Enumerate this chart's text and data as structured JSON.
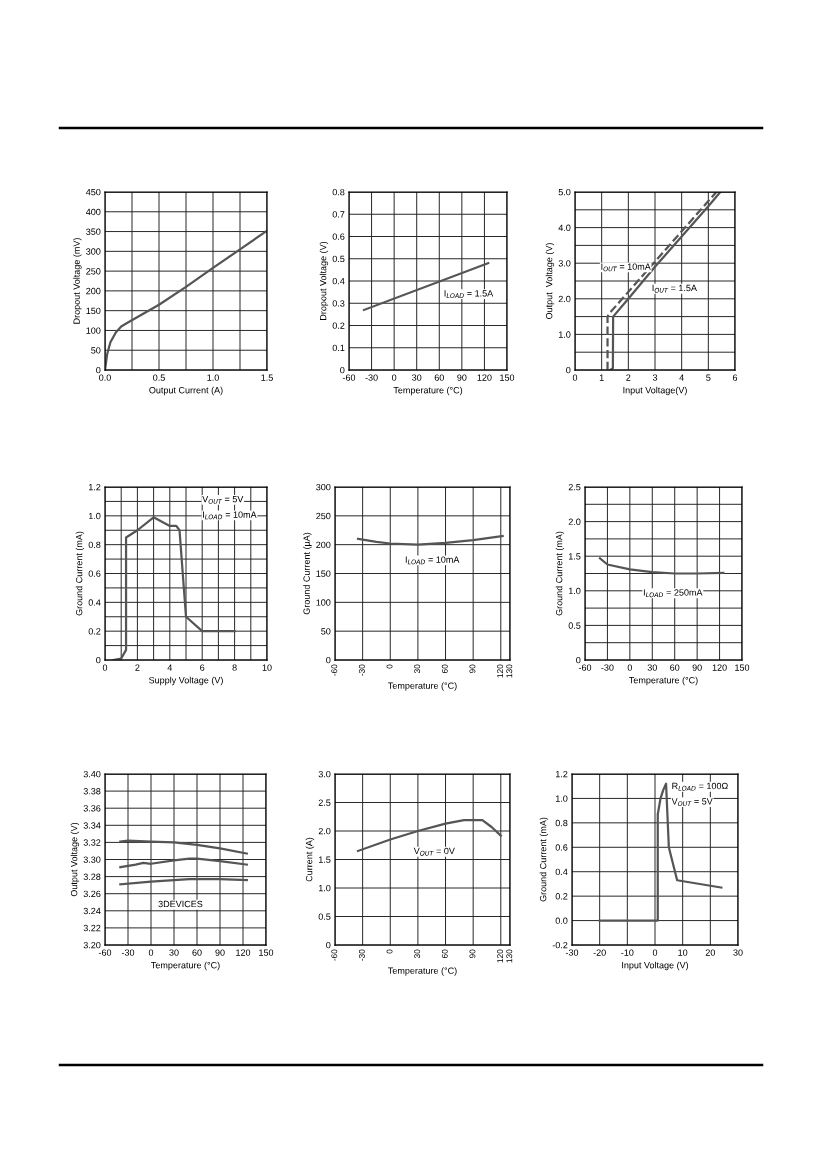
{
  "chart_data": [
    {
      "type": "line",
      "xlabel": "Output Current (A)",
      "ylabel": "Dropout Voltage (mV)",
      "xlim": [
        0,
        1.5
      ],
      "xticks": [
        {
          "value": 0,
          "label": "0.0"
        },
        {
          "value": 0.25,
          "label": null
        },
        0.5,
        {
          "value": 0.75,
          "label": null
        },
        {
          "value": 1,
          "label": "1.0"
        },
        {
          "value": 1.25,
          "label": null
        },
        1.5
      ],
      "ylim": [
        0,
        450
      ],
      "yticks": [
        0,
        50,
        100,
        150,
        200,
        250,
        300,
        350,
        400,
        450
      ],
      "grid": true,
      "series": [
        {
          "color": "#555555",
          "x": [
            0,
            0.02,
            0.05,
            0.1,
            0.15,
            0.2,
            0.5,
            0.75,
            1.0,
            1.25,
            1.5
          ],
          "values": [
            0,
            40,
            70,
            95,
            110,
            118,
            165,
            210,
            258,
            305,
            352
          ]
        }
      ]
    },
    {
      "type": "line",
      "xlabel": "Temperature (°C)",
      "ylabel": "Dropout Voltage (V)",
      "xlim": [
        -60,
        150
      ],
      "xticks": [
        -60,
        -30,
        0,
        30,
        60,
        90,
        120,
        150
      ],
      "ylim": [
        0,
        0.8
      ],
      "yticks": [
        0,
        0.1,
        0.2,
        0.3,
        0.4,
        0.5,
        0.6,
        0.7,
        0.8
      ],
      "grid": true,
      "series": [
        {
          "color": "#555555",
          "x": [
            -40,
            125
          ],
          "values": [
            0.27,
            0.48
          ]
        }
      ],
      "annotations": [
        "I$_{LOAD}$ = 1.5A"
      ]
    },
    {
      "type": "line",
      "xlabel": "Input Voltage(V)",
      "ylabel": "Output  Voltage (V)",
      "xlim": [
        0,
        6
      ],
      "xticks": [
        0,
        1,
        2,
        3,
        4,
        5,
        6
      ],
      "ylim": [
        0,
        5
      ],
      "yticks": [
        0,
        {
          "value": 0.5,
          "label": null
        },
        {
          "value": 1,
          "label": "1.0"
        },
        {
          "value": 1.5,
          "label": null
        },
        {
          "value": 2,
          "label": "2.0"
        },
        {
          "value": 2.5,
          "label": null
        },
        {
          "value": 3,
          "label": "3.0"
        },
        {
          "value": 3.5,
          "label": null
        },
        {
          "value": 4,
          "label": "4.0"
        },
        {
          "value": 4.5,
          "label": null
        },
        {
          "value": 5,
          "label": "5.0"
        }
      ],
      "grid": true,
      "series": [
        {
          "color": "#555555",
          "line_style": "dashed",
          "x": [
            1.22,
            1.22,
            1.3,
            5.3
          ],
          "values": [
            0,
            1.5,
            1.6,
            5.0
          ]
        },
        {
          "color": "#555555",
          "line_style": "solid",
          "x": [
            1.33,
            1.42,
            1.43,
            2,
            3,
            4,
            5,
            5.45
          ],
          "values": [
            0,
            0.05,
            1.5,
            2.0,
            2.9,
            3.75,
            4.6,
            5.0
          ]
        }
      ],
      "annotations": [
        "I$_{OUT}$ = 10mA",
        "I$_{OUT}$ = 1.5A"
      ]
    },
    {
      "type": "line",
      "xlabel": "Supply Voltage (V)",
      "ylabel": "Ground Current (mA)",
      "xlim": [
        0,
        10
      ],
      "xticks": [
        0,
        {
          "value": 1,
          "label": null
        },
        2,
        {
          "value": 3,
          "label": null
        },
        4,
        {
          "value": 5,
          "label": null
        },
        6,
        {
          "value": 7,
          "label": null
        },
        8,
        {
          "value": 9,
          "label": null
        },
        10
      ],
      "ylim": [
        0,
        1.2
      ],
      "yticks": [
        0,
        {
          "value": 0.1,
          "label": null
        },
        0.2,
        {
          "value": 0.3,
          "label": null
        },
        0.4,
        {
          "value": 0.5,
          "label": null
        },
        0.6,
        {
          "value": 0.7,
          "label": null
        },
        0.8,
        {
          "value": 0.9,
          "label": null
        },
        {
          "value": 1,
          "label": "1.0"
        },
        {
          "value": 1.1,
          "label": null
        },
        1.2
      ],
      "grid": true,
      "series": [
        {
          "color": "#555555",
          "x": [
            0.5,
            1,
            1.3,
            1.3,
            2,
            3,
            4,
            4.4,
            4.6,
            5,
            6,
            8
          ],
          "values": [
            0,
            0.01,
            0.07,
            0.85,
            0.9,
            0.99,
            0.93,
            0.93,
            0.9,
            0.3,
            0.2,
            0.2
          ]
        }
      ],
      "annotations": [
        "V$_{OUT}$ = 5V",
        "I$_{LOAD}$ = 10mA"
      ]
    },
    {
      "type": "line",
      "xlabel": "Temperature (°C)",
      "ylabel": "Ground Current (µA)",
      "xlim": [
        -60,
        130
      ],
      "xticks": [
        -60,
        -30,
        0,
        30,
        60,
        90,
        120,
        130
      ],
      "ylim": [
        0,
        300
      ],
      "yticks": [
        0,
        50,
        100,
        150,
        200,
        250,
        300
      ],
      "grid": true,
      "series": [
        {
          "color": "#555555",
          "x": [
            -35,
            -15,
            0,
            30,
            60,
            90,
            122
          ],
          "values": [
            210,
            205,
            202,
            200,
            203,
            208,
            215
          ]
        }
      ],
      "annotations": [
        "I$_{LOAD}$ = 10mA"
      ]
    },
    {
      "type": "line",
      "xlabel": "Temperature (°C)",
      "ylabel": "Ground Current (mA)",
      "xlim": [
        -60,
        150
      ],
      "xticks": [
        -60,
        -30,
        0,
        30,
        60,
        90,
        120,
        150
      ],
      "ylim": [
        0,
        2.5
      ],
      "yticks": [
        0,
        {
          "value": 0.25,
          "label": null
        },
        0.5,
        {
          "value": 0.75,
          "label": null
        },
        {
          "value": 1,
          "label": "1.0"
        },
        {
          "value": 1.25,
          "label": null
        },
        1.5,
        {
          "value": 1.75,
          "label": null
        },
        {
          "value": 2,
          "label": "2.0"
        },
        {
          "value": 2.25,
          "label": null
        },
        2.5
      ],
      "grid": true,
      "series": [
        {
          "color": "#555555",
          "x": [
            -40,
            -30,
            0,
            30,
            60,
            90,
            125
          ],
          "values": [
            1.47,
            1.38,
            1.31,
            1.27,
            1.25,
            1.25,
            1.26
          ]
        }
      ],
      "annotations": [
        "I$_{LOAD}$ = 250mA"
      ]
    },
    {
      "type": "line",
      "xlabel": "Temperature (°C)",
      "ylabel": "Output Voltage (V)",
      "xlim": [
        -60,
        150
      ],
      "xticks": [
        -60,
        -30,
        0,
        30,
        60,
        90,
        120,
        150
      ],
      "ylim": [
        3.2,
        3.4
      ],
      "yticks": [
        {
          "value": 3.2,
          "label": "3.20"
        },
        {
          "value": 3.22,
          "label": "3.22"
        },
        {
          "value": 3.24,
          "label": "3.24"
        },
        {
          "value": 3.26,
          "label": "3.26"
        },
        {
          "value": 3.28,
          "label": "3.28"
        },
        {
          "value": 3.3,
          "label": "3.30"
        },
        {
          "value": 3.32,
          "label": "3.32"
        },
        {
          "value": 3.34,
          "label": "3.34"
        },
        {
          "value": 3.36,
          "label": "3.36"
        },
        {
          "value": 3.38,
          "label": "3.38"
        },
        {
          "value": 3.4,
          "label": "3.40"
        }
      ],
      "grid": true,
      "series": [
        {
          "color": "#555555",
          "x": [
            -40,
            -30,
            0,
            30,
            60,
            90,
            125
          ],
          "values": [
            3.321,
            3.322,
            3.321,
            3.32,
            3.317,
            3.313,
            3.307
          ]
        },
        {
          "color": "#555555",
          "x": [
            -40,
            -20,
            -10,
            0,
            30,
            50,
            60,
            90,
            125
          ],
          "values": [
            3.291,
            3.294,
            3.296,
            3.295,
            3.299,
            3.301,
            3.301,
            3.298,
            3.294
          ]
        },
        {
          "color": "#555555",
          "x": [
            -40,
            0,
            30,
            50,
            90,
            125
          ],
          "values": [
            3.271,
            3.274,
            3.276,
            3.277,
            3.277,
            3.276
          ]
        }
      ],
      "annotations": [
        "3DEVICES"
      ]
    },
    {
      "type": "line",
      "xlabel": "Temperature (°C)",
      "ylabel": "Current (A)",
      "xlim": [
        -60,
        130
      ],
      "xticks": [
        -60,
        -30,
        0,
        30,
        60,
        90,
        120,
        130
      ],
      "ylim": [
        0,
        3
      ],
      "yticks": [
        0,
        0.5,
        {
          "value": 1,
          "label": "1.0"
        },
        1.5,
        {
          "value": 2,
          "label": "2.0"
        },
        2.5,
        {
          "value": 3,
          "label": "3.0"
        }
      ],
      "grid": true,
      "series": [
        {
          "color": "#555555",
          "x": [
            -35,
            0,
            30,
            60,
            80,
            100,
            110,
            120
          ],
          "values": [
            1.65,
            1.85,
            2.0,
            2.13,
            2.19,
            2.19,
            2.07,
            1.92
          ]
        }
      ],
      "annotations": [
        "V$_{OUT}$ = 0V"
      ]
    },
    {
      "type": "line",
      "xlabel": "Input Voltage (V)",
      "ylabel": "Ground Current (mA)",
      "xlim": [
        -30,
        30
      ],
      "xticks": [
        -30,
        -20,
        -10,
        0,
        10,
        20,
        30
      ],
      "ylim": [
        -0.2,
        1.2
      ],
      "yticks": [
        -0.2,
        {
          "value": 0,
          "label": "0.0"
        },
        0.2,
        0.4,
        0.6,
        0.8,
        {
          "value": 1,
          "label": "1.0"
        },
        1.2
      ],
      "grid": true,
      "series": [
        {
          "color": "#555555",
          "x": [
            -20,
            1,
            1,
            2,
            3,
            4,
            5,
            8,
            24
          ],
          "values": [
            0,
            0,
            0.87,
            1.0,
            1.07,
            1.12,
            0.6,
            0.33,
            0.27
          ]
        }
      ],
      "annotations": [
        "R$_{LOAD}$ = 100Ω",
        "V$_{OUT}$ = 5V"
      ]
    }
  ]
}
